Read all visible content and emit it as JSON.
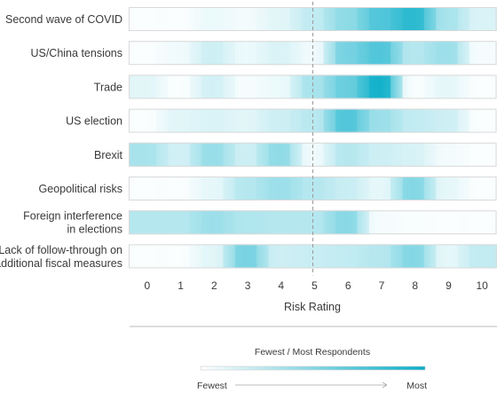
{
  "chart_data": {
    "type": "heatmap",
    "title": "",
    "xlabel": "Risk Rating",
    "x_ticks": [
      "0",
      "1",
      "2",
      "3",
      "4",
      "5",
      "6",
      "7",
      "8",
      "9",
      "10"
    ],
    "x_range": [
      -0.5,
      10.5
    ],
    "midline_at": 5,
    "color_low": "#ffffff",
    "color_high": "#07aec8",
    "intensity_scale": "0 = fewest respondents, 1 = most respondents",
    "rows": [
      {
        "label": "Second wave of COVID",
        "values": [
          0.02,
          0.02,
          0.08,
          0.05,
          0.12,
          0.25,
          0.45,
          0.7,
          0.85,
          0.35,
          0.15
        ]
      },
      {
        "label": "US/China tensions",
        "values": [
          0.02,
          0.06,
          0.2,
          0.08,
          0.15,
          0.06,
          0.55,
          0.7,
          0.3,
          0.4,
          0.04
        ]
      },
      {
        "label": "Trade",
        "values": [
          0.12,
          0.02,
          0.18,
          0.04,
          0.08,
          0.35,
          0.6,
          0.95,
          0.03,
          0.1,
          0.02
        ]
      },
      {
        "label": "US election",
        "values": [
          0.02,
          0.12,
          0.15,
          0.12,
          0.2,
          0.28,
          0.7,
          0.4,
          0.25,
          0.2,
          0.02
        ]
      },
      {
        "label": "Brexit",
        "values": [
          0.35,
          0.18,
          0.42,
          0.2,
          0.45,
          0.06,
          0.3,
          0.2,
          0.16,
          0.05,
          0.02
        ]
      },
      {
        "label": "Geopolitical risks",
        "values": [
          0.02,
          0.02,
          0.1,
          0.3,
          0.4,
          0.3,
          0.22,
          0.1,
          0.5,
          0.1,
          0.02
        ]
      },
      {
        "label": "Foreign interference in elections",
        "values": [
          0.3,
          0.3,
          0.4,
          0.32,
          0.3,
          0.3,
          0.48,
          0.04,
          0.03,
          0.02,
          0.02
        ]
      },
      {
        "label": "Lack of follow-through on additional fiscal measures",
        "values": [
          0.02,
          0.02,
          0.12,
          0.55,
          0.2,
          0.22,
          0.25,
          0.3,
          0.5,
          0.1,
          0.25
        ]
      }
    ],
    "legend": {
      "title": "Fewest / Most Respondents",
      "low_label": "Fewest",
      "high_label": "Most"
    }
  }
}
